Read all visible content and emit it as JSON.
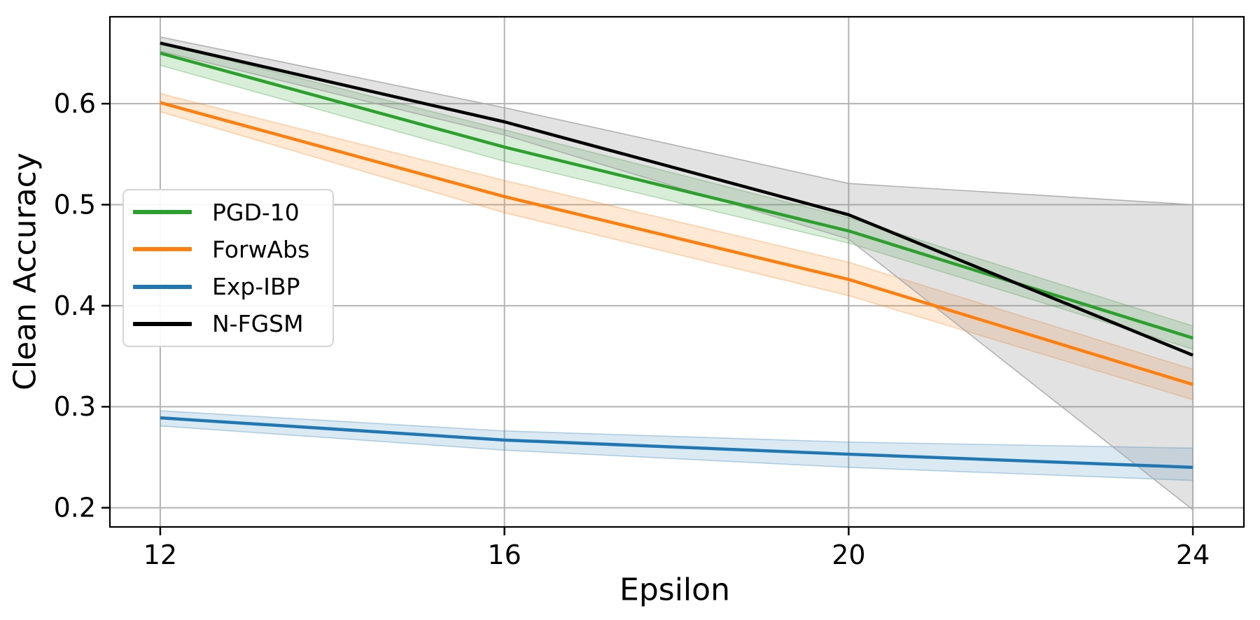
{
  "figure": {
    "title": "",
    "xlabel": "Epsilon",
    "ylabel": "Clean Accuracy"
  },
  "legend": {
    "position": "upper-left-inside",
    "items": [
      {
        "label": "PGD-10",
        "color": "#2ca02c"
      },
      {
        "label": "ForwAbs",
        "color": "#ff7f0e"
      },
      {
        "label": "Exp-IBP",
        "color": "#1f77b4"
      },
      {
        "label": "N-FGSM",
        "color": "#000000"
      }
    ]
  },
  "chart_data": {
    "type": "line",
    "title": "",
    "xlabel": "Epsilon",
    "ylabel": "Clean Accuracy",
    "x": [
      12,
      16,
      20,
      24
    ],
    "x_ticks": [
      12,
      16,
      20,
      24
    ],
    "x_tick_labels": [
      "12",
      "16",
      "20",
      "24"
    ],
    "y_ticks": [
      0.2,
      0.3,
      0.4,
      0.5,
      0.6
    ],
    "y_tick_labels": [
      "0.2",
      "0.3",
      "0.4",
      "0.5",
      "0.6"
    ],
    "xlim": [
      11.415,
      24.593
    ],
    "ylim": [
      0.181,
      0.686
    ],
    "grid": true,
    "grid_color": "#b3b3b3",
    "legend_position": "upper left",
    "series": [
      {
        "name": "PGD-10",
        "color": "#2ca02c",
        "values": [
          0.65,
          0.557,
          0.474,
          0.368
        ],
        "band_lower": [
          0.638,
          0.543,
          0.462,
          0.357
        ],
        "band_upper": [
          0.66,
          0.574,
          0.487,
          0.38
        ],
        "band_opacity": 0.18
      },
      {
        "name": "ForwAbs",
        "color": "#ff7f0e",
        "values": [
          0.601,
          0.508,
          0.426,
          0.322
        ],
        "band_lower": [
          0.592,
          0.492,
          0.41,
          0.307
        ],
        "band_upper": [
          0.61,
          0.524,
          0.443,
          0.337
        ],
        "band_opacity": 0.18
      },
      {
        "name": "Exp-IBP",
        "color": "#1f77b4",
        "values": [
          0.289,
          0.267,
          0.253,
          0.24
        ],
        "band_lower": [
          0.281,
          0.257,
          0.24,
          0.227
        ],
        "band_upper": [
          0.296,
          0.276,
          0.265,
          0.259
        ],
        "band_opacity": 0.16
      },
      {
        "name": "N-FGSM",
        "color": "#000000",
        "band_color": "#8a8a8a",
        "band_edge_color": "#ababab",
        "values": [
          0.66,
          0.582,
          0.49,
          0.351
        ],
        "band_lower": [
          0.652,
          0.569,
          0.466,
          0.198
        ],
        "band_upper": [
          0.666,
          0.596,
          0.521,
          0.5
        ],
        "band_opacity": 0.25
      }
    ]
  }
}
